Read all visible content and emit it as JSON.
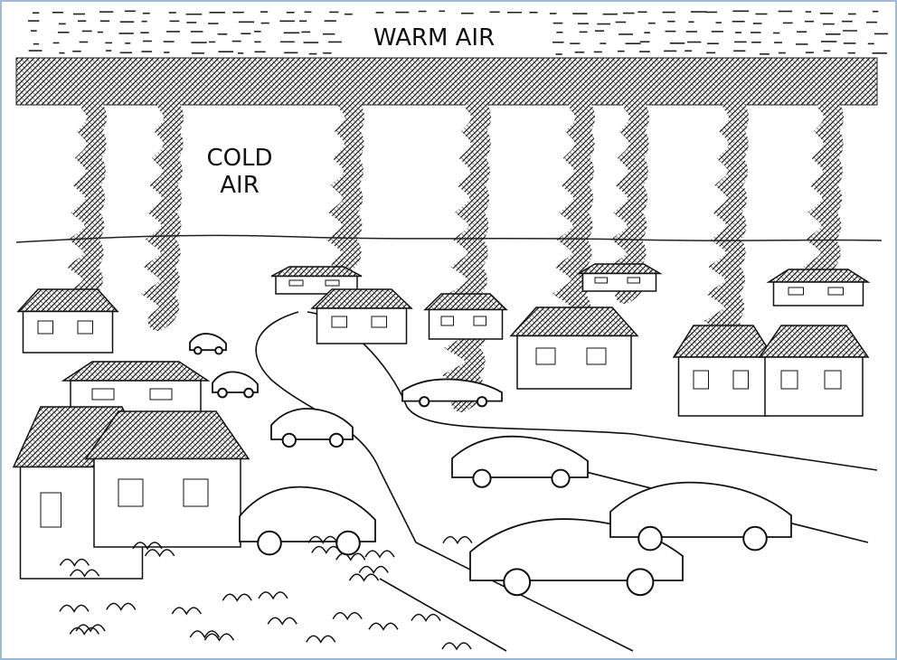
{
  "labels": {
    "warm": "WARM AIR",
    "cold": [
      "COLD",
      "AIR"
    ]
  }
}
